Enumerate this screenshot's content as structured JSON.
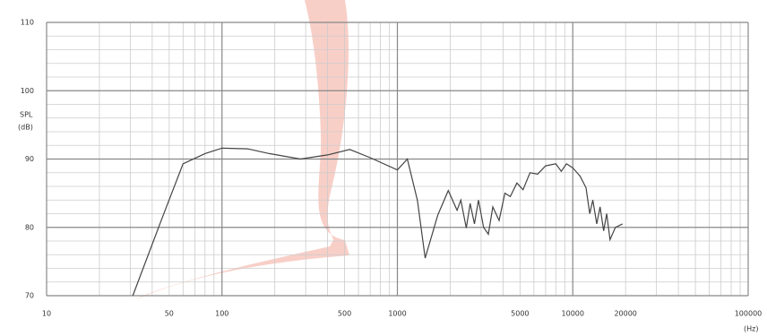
{
  "chart_data": {
    "type": "line",
    "y_label": [
      "SPL",
      "(dB)"
    ],
    "x_label": "(Hz)",
    "xscale": "log",
    "xlim": [
      10,
      100000
    ],
    "ylim": [
      70,
      110
    ],
    "xticks": [
      10,
      50,
      100,
      500,
      1000,
      5000,
      10000,
      20000,
      100000
    ],
    "yticks": [
      70,
      80,
      90,
      100,
      110
    ],
    "major_xgrid": [
      10,
      100,
      1000,
      10000,
      100000
    ],
    "minor_xgrid": [
      20,
      30,
      40,
      50,
      60,
      70,
      80,
      90,
      200,
      300,
      400,
      500,
      600,
      700,
      800,
      900,
      2000,
      3000,
      4000,
      5000,
      6000,
      7000,
      8000,
      9000,
      20000,
      30000,
      40000,
      50000,
      60000,
      70000,
      80000,
      90000
    ],
    "minor_ygrid": [
      72,
      74,
      76,
      78,
      82,
      84,
      86,
      88,
      92,
      94,
      96,
      98,
      102,
      104,
      106,
      108
    ],
    "grid": true,
    "series": [
      {
        "name": "SPL",
        "color": "#444",
        "x": [
          31,
          45,
          60,
          80,
          100,
          140,
          186,
          280,
          400,
          535,
          700,
          1000,
          1140,
          1300,
          1440,
          1700,
          1950,
          2190,
          2300,
          2470,
          2600,
          2750,
          2900,
          3100,
          3300,
          3500,
          3800,
          4100,
          4400,
          4800,
          5200,
          5700,
          6300,
          7000,
          8000,
          8600,
          9200,
          10000,
          11000,
          11900,
          12500,
          13000,
          13700,
          14300,
          15000,
          15600,
          16300,
          17500,
          19200
        ],
        "values": [
          70,
          81,
          89.3,
          90.8,
          91.6,
          91.5,
          90.8,
          90,
          90.6,
          91.4,
          90.2,
          88.4,
          90,
          84,
          75.5,
          81.8,
          85.4,
          82.5,
          84,
          79.9,
          83.5,
          80.5,
          84,
          80,
          79,
          83,
          81,
          85,
          84.5,
          86.5,
          85.5,
          88,
          87.8,
          89,
          89.3,
          88.2,
          89.3,
          88.7,
          87.5,
          85.8,
          82,
          84,
          80.5,
          83,
          79.5,
          82,
          78.2,
          80,
          80.5
        ]
      }
    ]
  }
}
